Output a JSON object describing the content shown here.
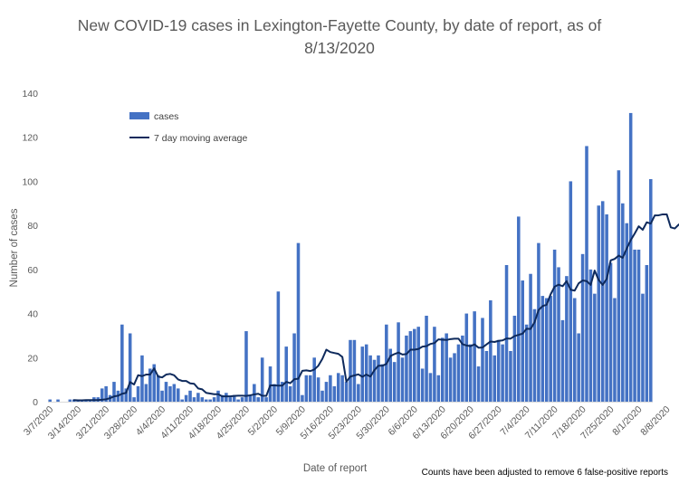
{
  "chart_data": {
    "type": "bar",
    "title_line1": "New COVID-19 cases in Lexington-Fayette County, by date of report, as of",
    "title_line2": "8/13/2020",
    "xlabel": "Date of report",
    "ylabel": "Number of cases",
    "ylim": [
      0,
      140
    ],
    "yticks": [
      0,
      20,
      40,
      60,
      80,
      100,
      120,
      140
    ],
    "grid": false,
    "legend_placement": "top-left",
    "start_date": "3/7/2020",
    "end_date": "8/13/2020",
    "xtick_labels": [
      "3/7/2020",
      "3/14/2020",
      "3/21/2020",
      "3/28/2020",
      "4/4/2020",
      "4/11/2020",
      "4/18/2020",
      "4/25/2020",
      "5/2/2020",
      "5/9/2020",
      "5/16/2020",
      "5/23/2020",
      "5/30/2020",
      "6/6/2020",
      "6/13/2020",
      "6/20/2020",
      "6/27/2020",
      "7/4/2020",
      "7/11/2020",
      "7/18/2020",
      "7/25/2020",
      "8/1/2020",
      "8/8/2020"
    ],
    "series": [
      {
        "name": "cases",
        "kind": "bar",
        "color": "#4472c4",
        "values": [
          1,
          0,
          1,
          0,
          0,
          1,
          1,
          1,
          1,
          1,
          1,
          2,
          2,
          6,
          7,
          3,
          9,
          5,
          35,
          6,
          31,
          2,
          7,
          21,
          8,
          15,
          17,
          12,
          5,
          9,
          7,
          8,
          6,
          1,
          3,
          5,
          2,
          4,
          2,
          1,
          1,
          2,
          5,
          3,
          4,
          2,
          3,
          1,
          2,
          32,
          3,
          8,
          2,
          20,
          2,
          16,
          8,
          50,
          9,
          25,
          7,
          31,
          72,
          3,
          12,
          12,
          20,
          11,
          5,
          9,
          12,
          7,
          13,
          12,
          9,
          28,
          28,
          8,
          25,
          26,
          21,
          19,
          21,
          17,
          35,
          24,
          18,
          36,
          20,
          30,
          32,
          33,
          34,
          15,
          39,
          13,
          34,
          12,
          29,
          31,
          20,
          22,
          26,
          30,
          40,
          26,
          41,
          16,
          38,
          23,
          46,
          21,
          28,
          26,
          62,
          23,
          39,
          84,
          55,
          35,
          58,
          42,
          72,
          48,
          47,
          48,
          69,
          61,
          37,
          57,
          100,
          47,
          31,
          67,
          116,
          60,
          49,
          89,
          91,
          85,
          63,
          47,
          105,
          90,
          81,
          131,
          69,
          69,
          49,
          62,
          101
        ],
        "note": "daily values read from bar heights"
      },
      {
        "name": "7 day moving average",
        "kind": "line",
        "color": "#0e2a5c",
        "start_index": 6,
        "values": [
          0.7,
          0.6,
          0.6,
          0.7,
          0.7,
          0.7,
          0.7,
          0.9,
          1.1,
          1.6,
          2.4,
          2.7,
          3.6,
          4.0,
          8.9,
          7.8,
          12.0,
          11.6,
          12.3,
          12.3,
          15.1,
          11.4,
          11.0,
          12.3,
          12.6,
          12.0,
          10.1,
          9.4,
          9.4,
          8.3,
          8.1,
          6.0,
          5.6,
          4.0,
          3.7,
          3.4,
          3.4,
          2.4,
          2.4,
          2.4,
          2.6,
          2.7,
          2.7,
          2.6,
          2.9,
          3.3,
          3.6,
          2.7,
          2.6,
          7.4,
          7.4,
          7.3,
          7.3,
          9.0,
          8.4,
          10.2,
          10.4,
          14.0,
          14.2,
          13.9,
          14.6,
          16.3,
          19.4,
          23.6,
          22.5,
          22.1,
          21.7,
          20.3,
          9.1,
          11.4,
          11.9,
          12.4,
          11.3,
          12.3,
          11.4,
          14.3,
          16.3,
          16.3,
          17.1,
          20.7,
          21.6,
          22.3,
          21.4,
          21.6,
          23.6,
          23.6,
          23.9,
          25.0,
          25.2,
          26.2,
          26.6,
          28.3,
          28.1,
          28.0,
          28.4,
          28.6,
          28.6,
          26.1,
          25.5,
          25.2,
          26.0,
          24.5,
          24.6,
          26.0,
          27.3,
          27.1,
          27.6,
          27.8,
          28.7,
          28.6,
          29.8,
          30.3,
          30.9,
          33.1,
          33.0,
          36.1,
          41.6,
          43.4,
          44.0,
          48.7,
          52.2,
          53.1,
          52.4,
          54.7,
          50.8,
          50.4,
          53.7,
          55.0,
          54.7,
          53.0,
          59.5,
          55.2,
          53.0,
          55.7,
          64.1,
          64.8,
          66.3,
          65.3,
          69.5,
          73.3,
          76.3,
          79.6,
          78.0,
          81.4,
          80.8,
          84.5,
          84.6,
          85.0,
          85.0,
          79.1,
          78.6,
          80.4
        ]
      }
    ]
  },
  "footnote": "Counts have been adjusted to remove 6 false-positive reports"
}
